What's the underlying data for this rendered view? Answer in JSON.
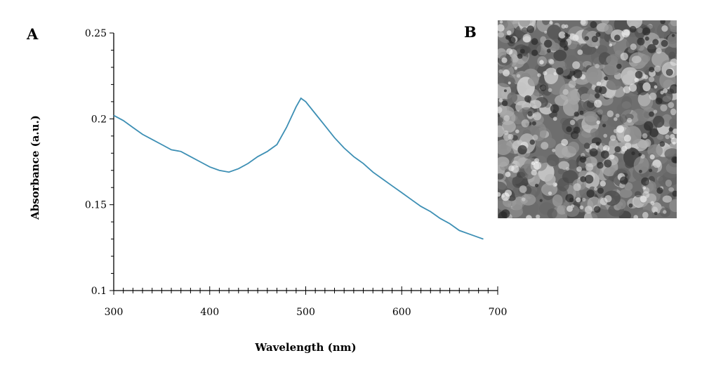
{
  "panel_a_label": "A",
  "panel_b_label": "B",
  "chart_data": {
    "type": "line",
    "xlabel": "Wavelength (nm)",
    "ylabel": "Absorbance (a.u.)",
    "xlim": [
      300,
      700
    ],
    "ylim": [
      0.1,
      0.25
    ],
    "x_ticks": [
      300,
      400,
      500,
      600,
      700
    ],
    "x_tick_labels": [
      "300",
      "400",
      "500",
      "600",
      "700"
    ],
    "y_ticks": [
      0.1,
      0.15,
      0.2,
      0.25
    ],
    "y_tick_labels": [
      "0.1",
      "0.15",
      "0.2",
      "0.25"
    ],
    "grid": false,
    "line_color": "#3d8fb4",
    "series": [
      {
        "x": [
          300,
          310,
          320,
          330,
          340,
          350,
          360,
          370,
          380,
          390,
          400,
          410,
          420,
          430,
          440,
          450,
          460,
          470,
          480,
          490,
          495,
          500,
          510,
          520,
          530,
          540,
          550,
          560,
          570,
          580,
          590,
          600,
          610,
          620,
          630,
          640,
          650,
          660,
          670,
          680,
          685
        ],
        "y": [
          0.202,
          0.199,
          0.195,
          0.191,
          0.188,
          0.185,
          0.182,
          0.181,
          0.178,
          0.175,
          0.172,
          0.17,
          0.169,
          0.171,
          0.174,
          0.178,
          0.181,
          0.185,
          0.195,
          0.207,
          0.212,
          0.21,
          0.203,
          0.196,
          0.189,
          0.183,
          0.178,
          0.174,
          0.169,
          0.165,
          0.161,
          0.157,
          0.153,
          0.149,
          0.146,
          0.142,
          0.139,
          0.135,
          0.133,
          0.131,
          0.13
        ]
      }
    ]
  },
  "sem_image": {
    "icon": "sem-micrograph-image",
    "base_color": "#8a8a8a"
  }
}
